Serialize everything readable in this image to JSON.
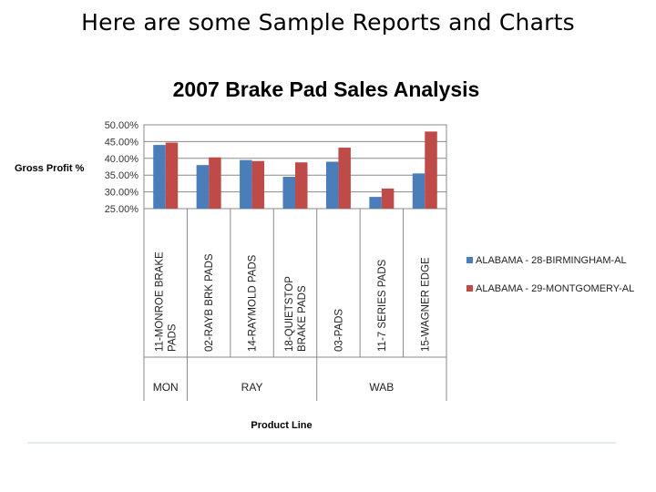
{
  "slide": {
    "title": "Here are some Sample Reports and Charts"
  },
  "chart_data": {
    "type": "bar",
    "title": "2007 Brake Pad Sales Analysis",
    "ylabel": "Gross Profit %",
    "xlabel": "Product Line",
    "ylim": [
      25,
      50
    ],
    "yticks": [
      "50.00%",
      "45.00%",
      "40.00%",
      "35.00%",
      "30.00%",
      "25.00%"
    ],
    "ytick_values": [
      50,
      45,
      40,
      35,
      30,
      25
    ],
    "categories": [
      [
        "11-MONROE BRAKE",
        "PADS"
      ],
      [
        "02-RAYB BRK PADS"
      ],
      [
        "14-RAYMOLD PADS"
      ],
      [
        "18-QUIETSTOP",
        "BRAKE PADS"
      ],
      [
        "03-PADS"
      ],
      [
        "11-7 SERIES PADS"
      ],
      [
        "15-WAGNER EDGE"
      ]
    ],
    "groups": [
      {
        "label": "MON",
        "span": 1
      },
      {
        "label": "RAY",
        "span": 3
      },
      {
        "label": "WAB",
        "span": 3
      }
    ],
    "series": [
      {
        "name": "ALABAMA - 28-BIRMINGHAM-AL",
        "color": "#4a7ebb",
        "values": [
          44,
          38,
          39.5,
          34.5,
          39,
          28.5,
          35.5
        ]
      },
      {
        "name": "ALABAMA - 29-MONTGOMERY-AL",
        "color": "#be4b48",
        "values": [
          44.7,
          40.3,
          39.2,
          38.8,
          43.2,
          31,
          48
        ]
      }
    ],
    "legend_position": "right",
    "grid": true
  }
}
